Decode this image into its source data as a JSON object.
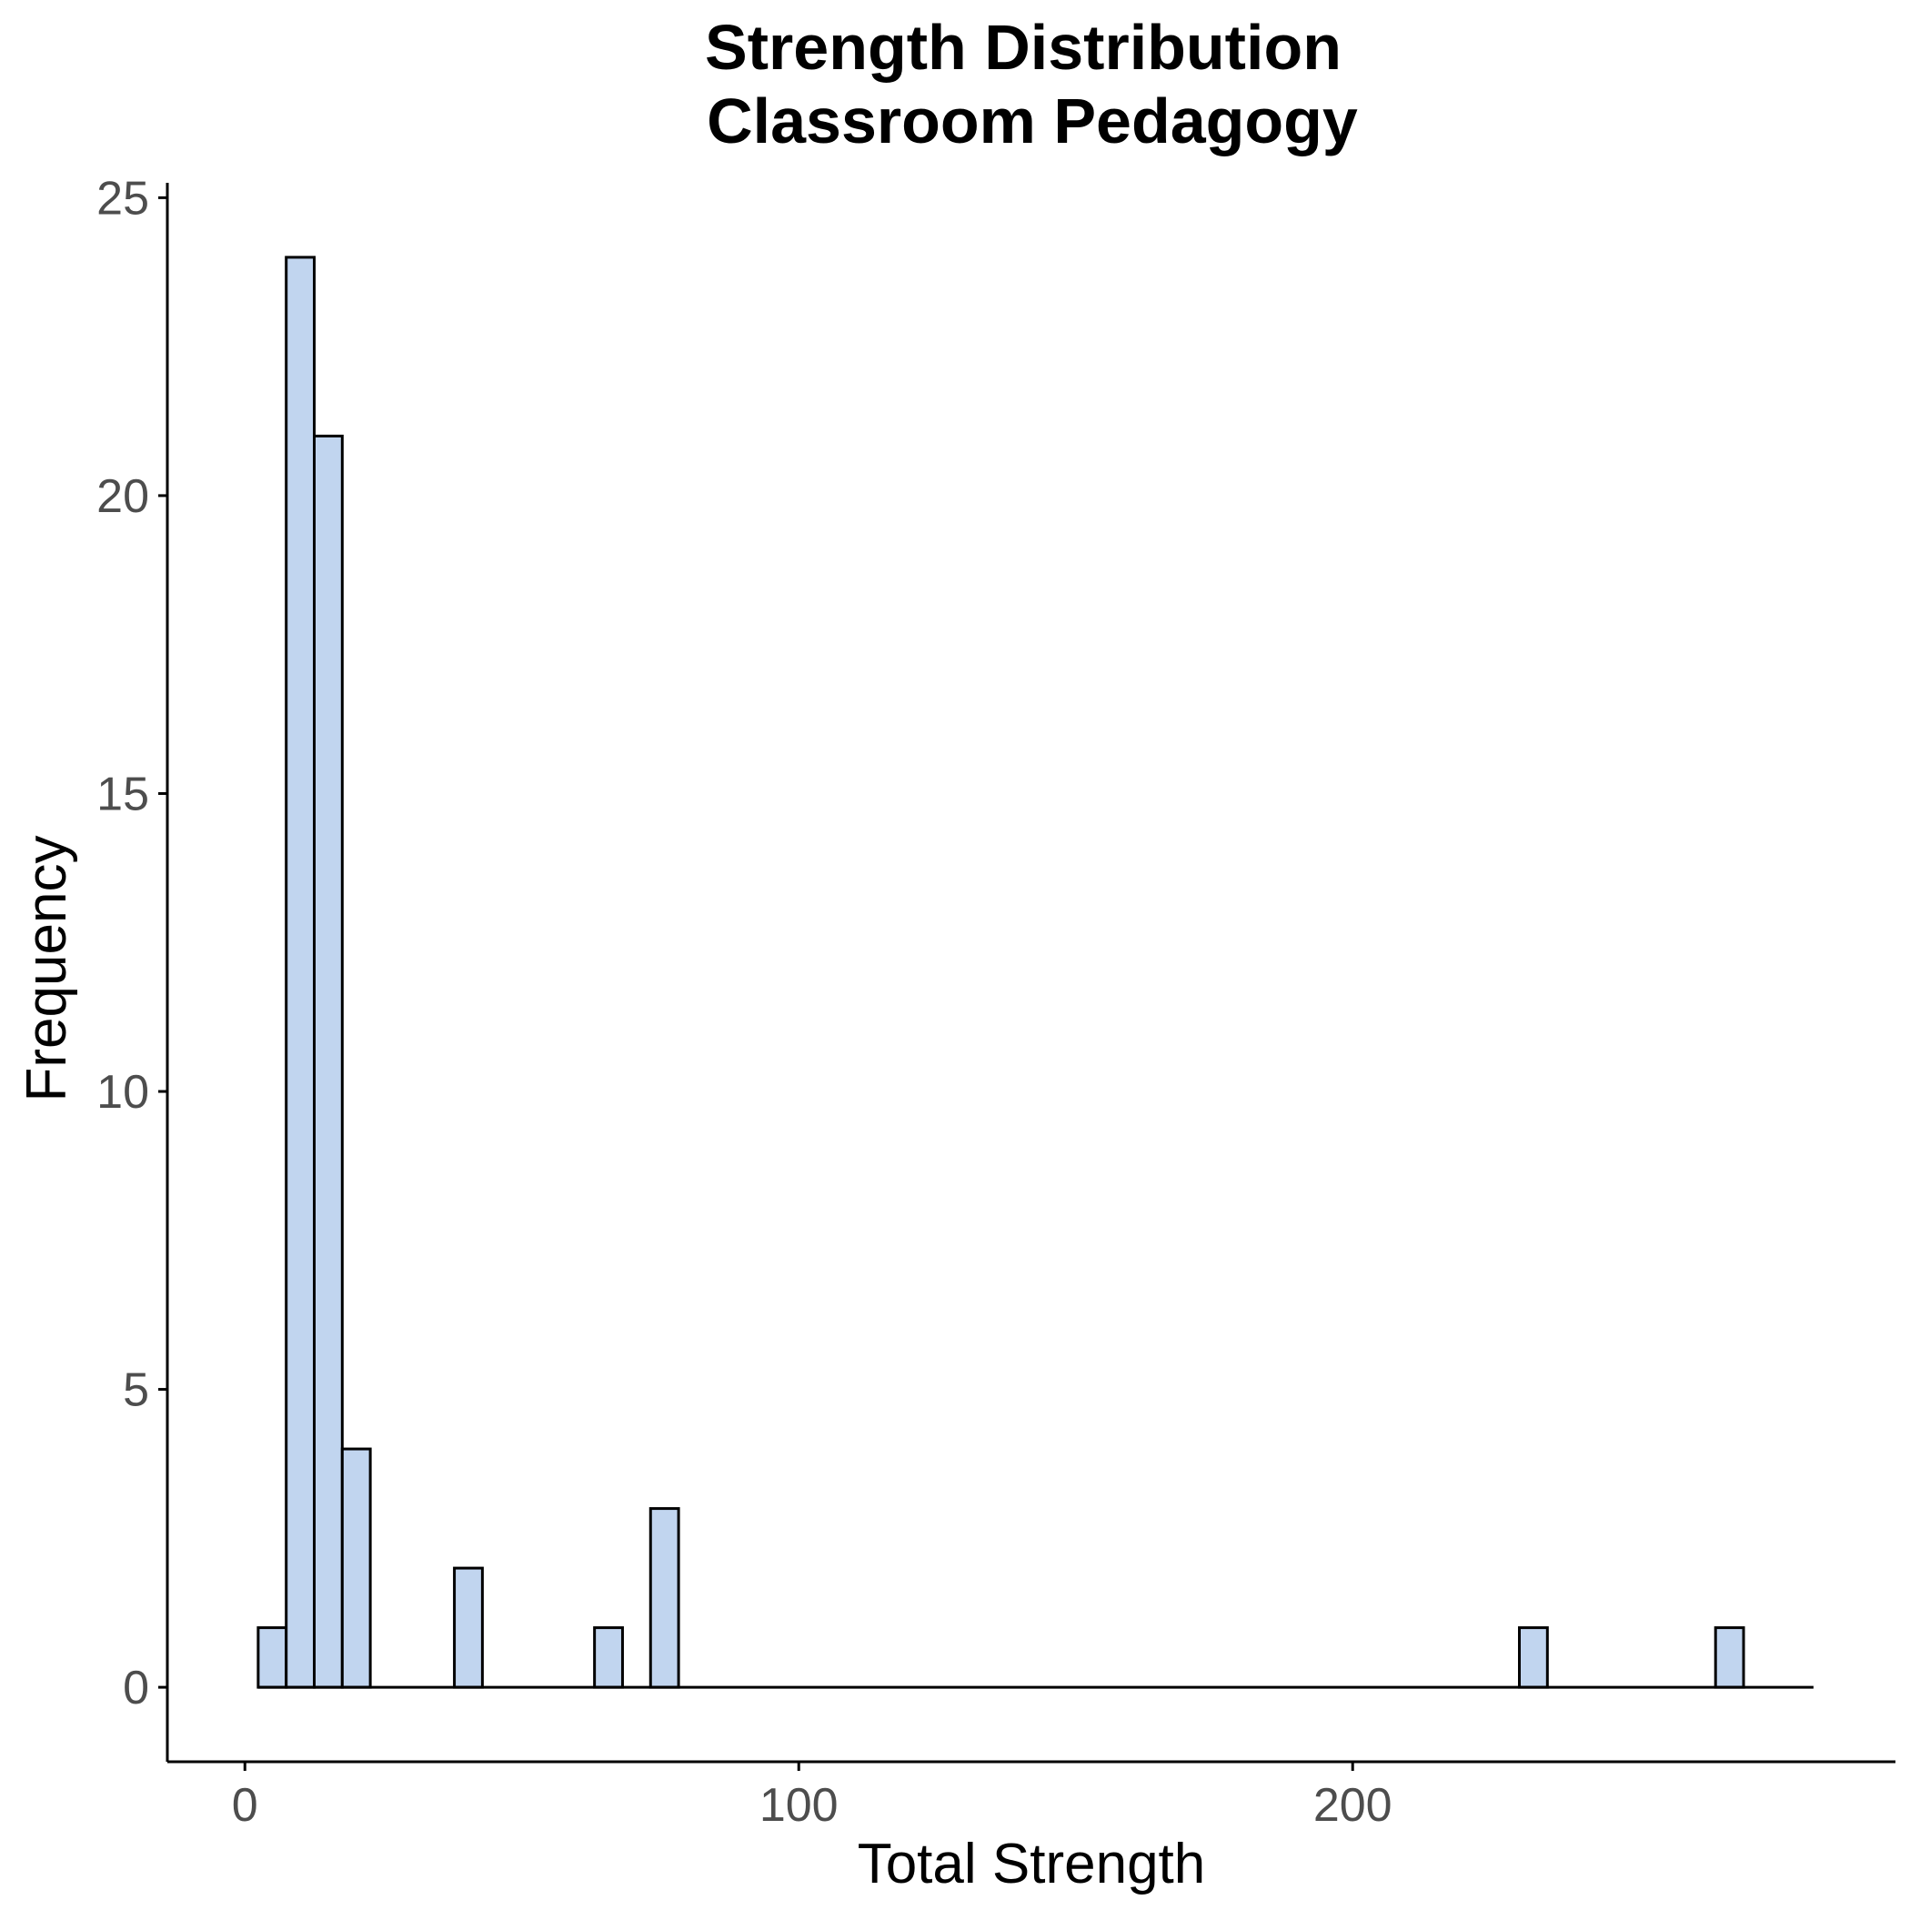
{
  "chart_data": {
    "type": "bar",
    "subtype": "histogram",
    "title": "Strength Distribution",
    "subtitle": "Classroom Pedagogy",
    "xlabel": "Total Strength",
    "ylabel": "Frequency",
    "xlim": [
      -14,
      298
    ],
    "ylim": [
      -1.25,
      25.25
    ],
    "x_ticks": [
      0,
      100,
      200
    ],
    "y_ticks": [
      0,
      5,
      10,
      15,
      20,
      25
    ],
    "x_tick_labels": [
      "0",
      "100",
      "200"
    ],
    "y_tick_labels": [
      "0",
      "5",
      "10",
      "15",
      "20",
      "25"
    ],
    "bin_width": 5.06,
    "bin_start": 2.4,
    "bin_end": 283.2,
    "bins": [
      {
        "x0": 2.4,
        "x1": 7.46,
        "count": 1
      },
      {
        "x0": 7.46,
        "x1": 12.52,
        "count": 24
      },
      {
        "x0": 12.52,
        "x1": 17.58,
        "count": 21
      },
      {
        "x0": 17.58,
        "x1": 22.64,
        "count": 4
      },
      {
        "x0": 37.82,
        "x1": 42.88,
        "count": 2
      },
      {
        "x0": 63.12,
        "x1": 68.18,
        "count": 1
      },
      {
        "x0": 73.24,
        "x1": 78.3,
        "count": 3
      },
      {
        "x0": 230.1,
        "x1": 235.16,
        "count": 1
      },
      {
        "x0": 265.52,
        "x1": 270.58,
        "count": 1
      }
    ],
    "fill_color": "#c1d5ef",
    "edge_color": "#000000",
    "grid": false,
    "legend": "none"
  }
}
